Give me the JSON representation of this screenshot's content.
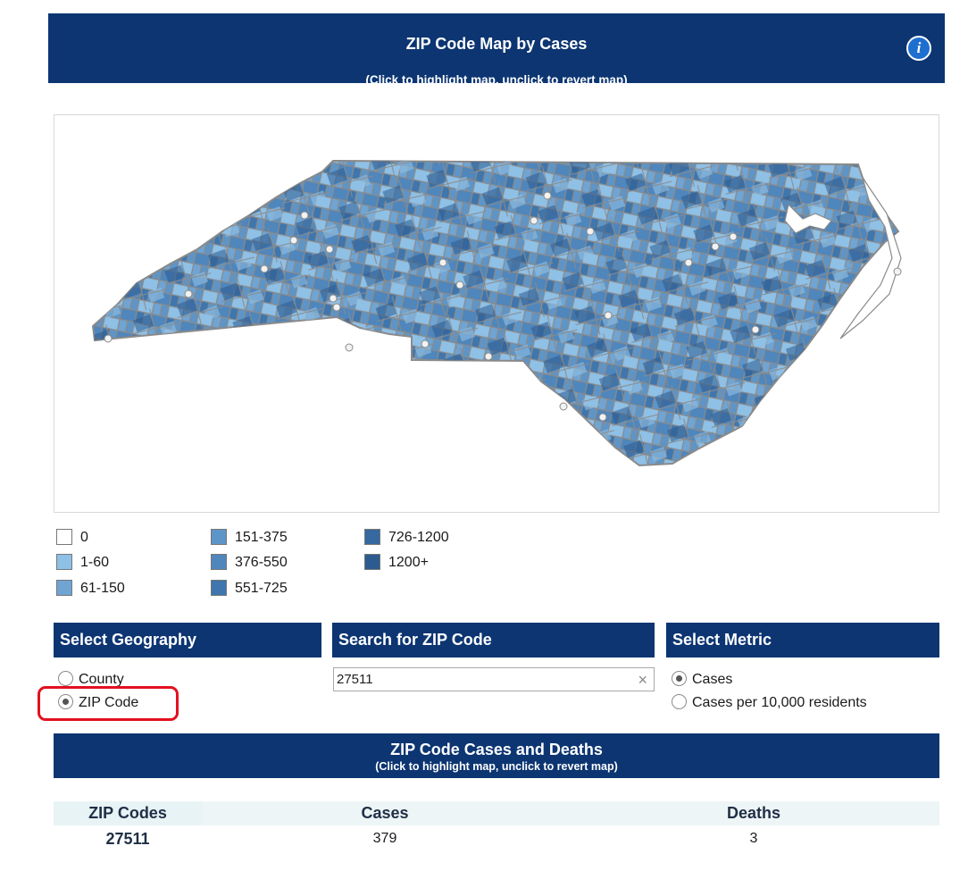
{
  "banner": {
    "title": "ZIP Code Map by Cases",
    "subtitle": "(Click to highlight map, unclick to revert map)",
    "info_glyph": "i"
  },
  "colors": {
    "navy": "#0c3572",
    "highlight_red": "#e3101f",
    "border_gray": "#8a8a8a"
  },
  "legend": [
    {
      "label": "0",
      "color": "#ffffff"
    },
    {
      "label": "1-60",
      "color": "#8fc0e6"
    },
    {
      "label": "61-150",
      "color": "#6fa4d3"
    },
    {
      "label": "151-375",
      "color": "#5d95c8"
    },
    {
      "label": "376-550",
      "color": "#4f86bc"
    },
    {
      "label": "551-725",
      "color": "#3f76ad"
    },
    {
      "label": "726-1200",
      "color": "#35699f"
    },
    {
      "label": "1200+",
      "color": "#2c5b90"
    }
  ],
  "geography": {
    "header": "Select Geography",
    "options": [
      {
        "label": "County",
        "selected": false
      },
      {
        "label": "ZIP Code",
        "selected": true
      }
    ]
  },
  "search": {
    "header": "Search for ZIP Code",
    "value": "27511",
    "clear_glyph": "×"
  },
  "metric": {
    "header": "Select Metric",
    "options": [
      {
        "label": "Cases",
        "selected": true
      },
      {
        "label": "Cases per 10,000 residents",
        "selected": false
      }
    ]
  },
  "table": {
    "title": "ZIP Code Cases and Deaths",
    "subtitle": "(Click to highlight map, unclick to revert map)",
    "headers": [
      "ZIP Codes",
      "Cases",
      "Deaths"
    ],
    "rows": [
      {
        "zip": "27511",
        "cases": "379",
        "deaths": "3"
      }
    ]
  }
}
